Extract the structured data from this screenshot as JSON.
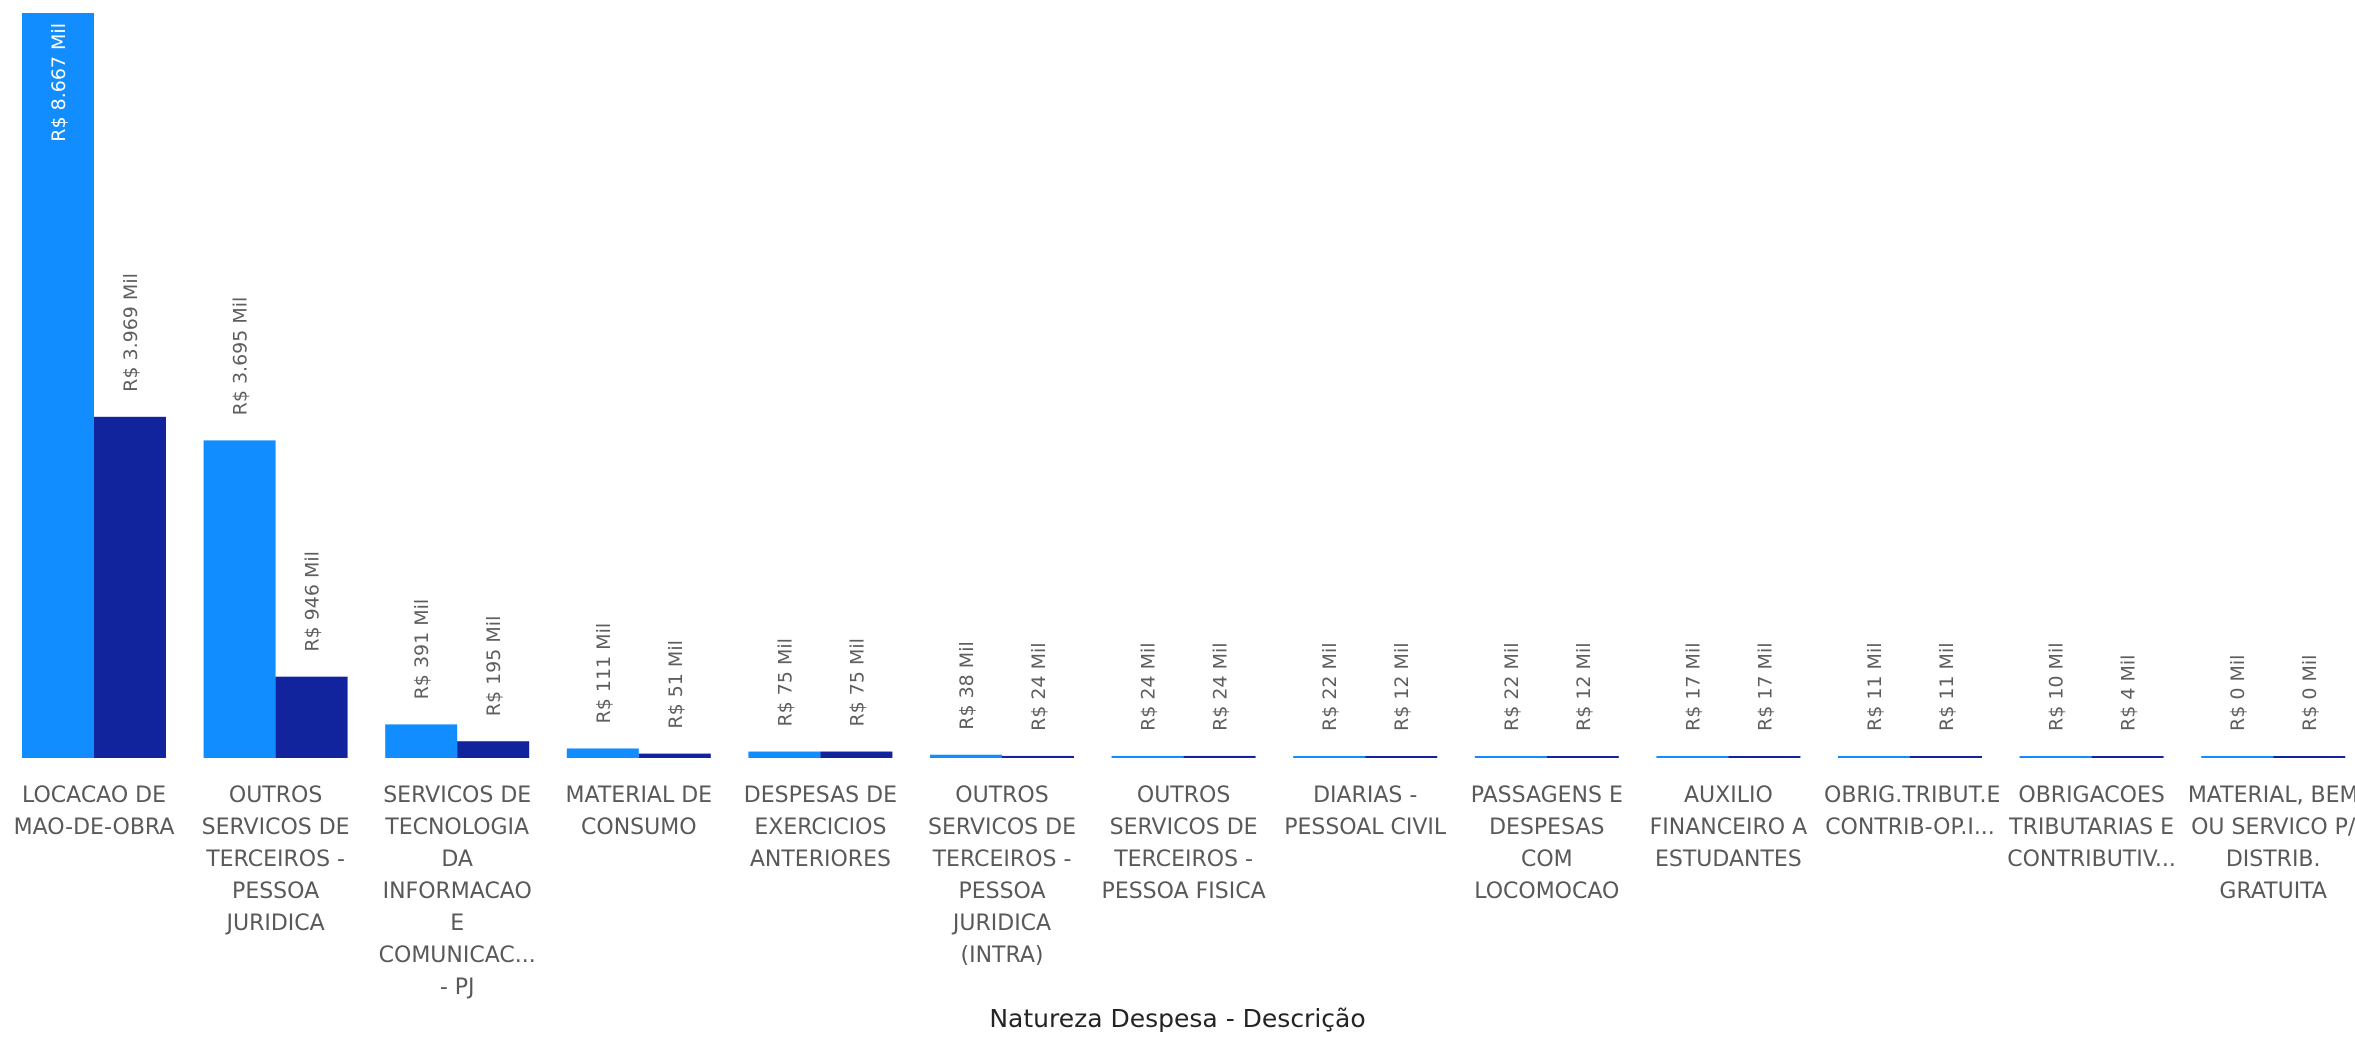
{
  "chart_data": {
    "type": "bar",
    "xlabel": "Natureza Despesa - Descrição",
    "categories": [
      [
        "LOCACAO DE",
        "MAO-DE-OBRA"
      ],
      [
        "OUTROS",
        "SERVICOS DE",
        "TERCEIROS -",
        "PESSOA",
        "JURIDICA"
      ],
      [
        "SERVICOS DE",
        "TECNOLOGIA",
        "DA",
        "INFORMACAO",
        "E",
        "COMUNICAC...",
        "- PJ"
      ],
      [
        "MATERIAL DE",
        "CONSUMO"
      ],
      [
        "DESPESAS DE",
        "EXERCICIOS",
        "ANTERIORES"
      ],
      [
        "OUTROS",
        "SERVICOS DE",
        "TERCEIROS -",
        "PESSOA",
        "JURIDICA",
        "(INTRA)"
      ],
      [
        "OUTROS",
        "SERVICOS DE",
        "TERCEIROS -",
        "PESSOA FISICA"
      ],
      [
        "DIARIAS -",
        "PESSOAL CIVIL"
      ],
      [
        "PASSAGENS E",
        "DESPESAS COM",
        "LOCOMOCAO"
      ],
      [
        "AUXILIO",
        "FINANCEIRO A",
        "ESTUDANTES"
      ],
      [
        "OBRIG.TRIBUT.E",
        "CONTRIB-OP.I..."
      ],
      [
        "OBRIGACOES",
        "TRIBUTARIAS E",
        "CONTRIBUTIV..."
      ],
      [
        "MATERIAL, BEM",
        "OU SERVICO P/",
        "DISTRIB.",
        "GRATUITA"
      ]
    ],
    "series": [
      {
        "color": "#118dff",
        "values": [
          8667,
          3695,
          391,
          111,
          75,
          38,
          24,
          22,
          22,
          17,
          11,
          10,
          0.3
        ],
        "labels": [
          "R$ 8.667 Mil",
          "R$ 3.695 Mil",
          "R$ 391 Mil",
          "R$ 111 Mil",
          "R$ 75 Mil",
          "R$ 38 Mil",
          "R$ 24 Mil",
          "R$ 22 Mil",
          "R$ 22 Mil",
          "R$ 17 Mil",
          "R$ 11 Mil",
          "R$ 10 Mil",
          "R$ 0 Mil"
        ]
      },
      {
        "color": "#12239e",
        "values": [
          3969,
          946,
          195,
          51,
          75,
          24,
          24,
          12,
          12,
          17,
          11,
          4,
          0.3
        ],
        "labels": [
          "R$ 3.969 Mil",
          "R$ 946 Mil",
          "R$ 195 Mil",
          "R$ 51 Mil",
          "R$ 75 Mil",
          "R$ 24 Mil",
          "R$ 24 Mil",
          "R$ 12 Mil",
          "R$ 12 Mil",
          "R$ 17 Mil",
          "R$ 11 Mil",
          "R$ 4 Mil",
          "R$ 0 Mil"
        ]
      }
    ],
    "ylim": [
      0,
      8667
    ],
    "grid": false,
    "legend": "none"
  }
}
